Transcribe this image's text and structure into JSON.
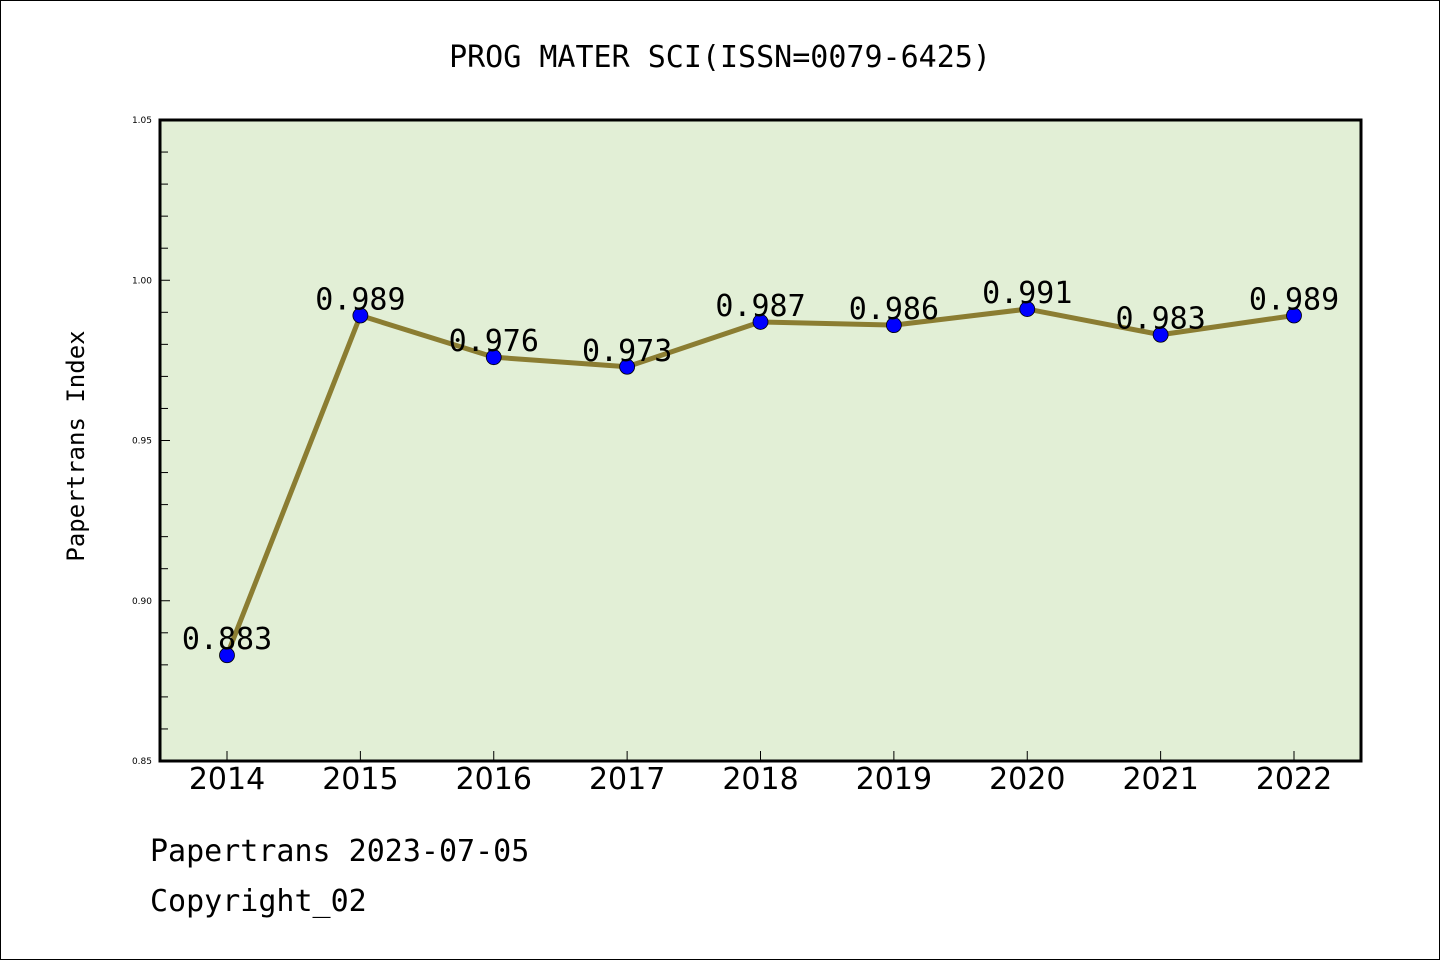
{
  "colors": {
    "plot_background": "#e2efd6",
    "line": "#8b7d32",
    "marker": "#0000ff",
    "axis": "#000000"
  },
  "chart_data": {
    "type": "line",
    "title": "PROG MATER SCI(ISSN=0079-6425)",
    "ylabel": "Papertrans Index",
    "xlabel": "",
    "categories": [
      "2014",
      "2015",
      "2016",
      "2017",
      "2018",
      "2019",
      "2020",
      "2021",
      "2022"
    ],
    "values": [
      0.883,
      0.989,
      0.976,
      0.973,
      0.987,
      0.986,
      0.991,
      0.983,
      0.989
    ],
    "data_labels": [
      "0.883",
      "0.989",
      "0.976",
      "0.973",
      "0.987",
      "0.986",
      "0.991",
      "0.983",
      "0.989"
    ],
    "ylim": [
      0.85,
      1.05
    ],
    "yticks": [
      "0.85",
      "0.90",
      "0.95",
      "1.00",
      "1.05"
    ],
    "ytick_values": [
      0.85,
      0.9,
      0.95,
      1.0,
      1.05
    ],
    "grid": false,
    "legend": "none"
  },
  "footer": {
    "line1": "Papertrans 2023-07-05",
    "line2": "Copyright_02"
  }
}
